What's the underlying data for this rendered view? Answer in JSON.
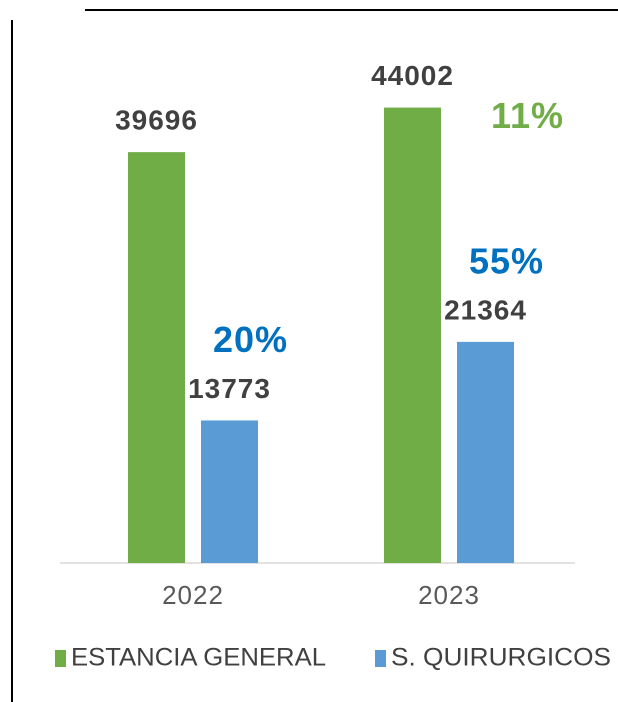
{
  "chart_data": {
    "type": "bar",
    "categories": [
      "2022",
      "2023"
    ],
    "series": [
      {
        "name": "ESTANCIA GENERAL",
        "color": "#70ad47",
        "values": [
          39696,
          44002
        ],
        "growth_labels": [
          null,
          "11%"
        ],
        "growth_color": "#70ad47"
      },
      {
        "name": "S. QUIRURGICOS",
        "color": "#5b9bd5",
        "values": [
          13773,
          21364
        ],
        "growth_labels": [
          "20%",
          "55%"
        ],
        "growth_color": "#0070c0"
      }
    ],
    "ylim": [
      0,
      48000
    ],
    "grid": false,
    "legend": "bottom"
  }
}
